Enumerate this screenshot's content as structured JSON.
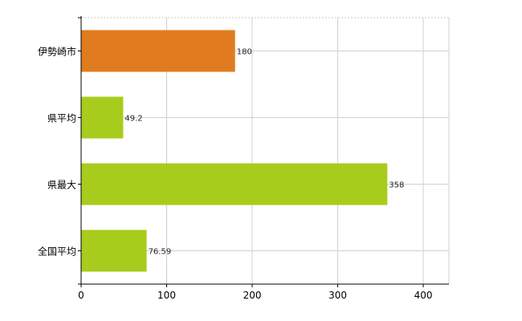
{
  "chart_data": {
    "type": "bar",
    "orientation": "horizontal",
    "categories": [
      "伊勢崎市",
      "県平均",
      "県最大",
      "全国平均"
    ],
    "values": [
      180,
      49.2,
      358,
      76.59
    ],
    "value_labels": [
      "180",
      "49.2",
      "358",
      "76.59"
    ],
    "bar_colors": [
      "#e07b20",
      "#a8cc1c",
      "#a8cc1c",
      "#a8cc1c"
    ],
    "xlim": [
      0,
      430
    ],
    "xticks": [
      0,
      100,
      200,
      300,
      400
    ],
    "title": "",
    "xlabel": "",
    "ylabel": "",
    "grid": true,
    "legend": "none"
  }
}
